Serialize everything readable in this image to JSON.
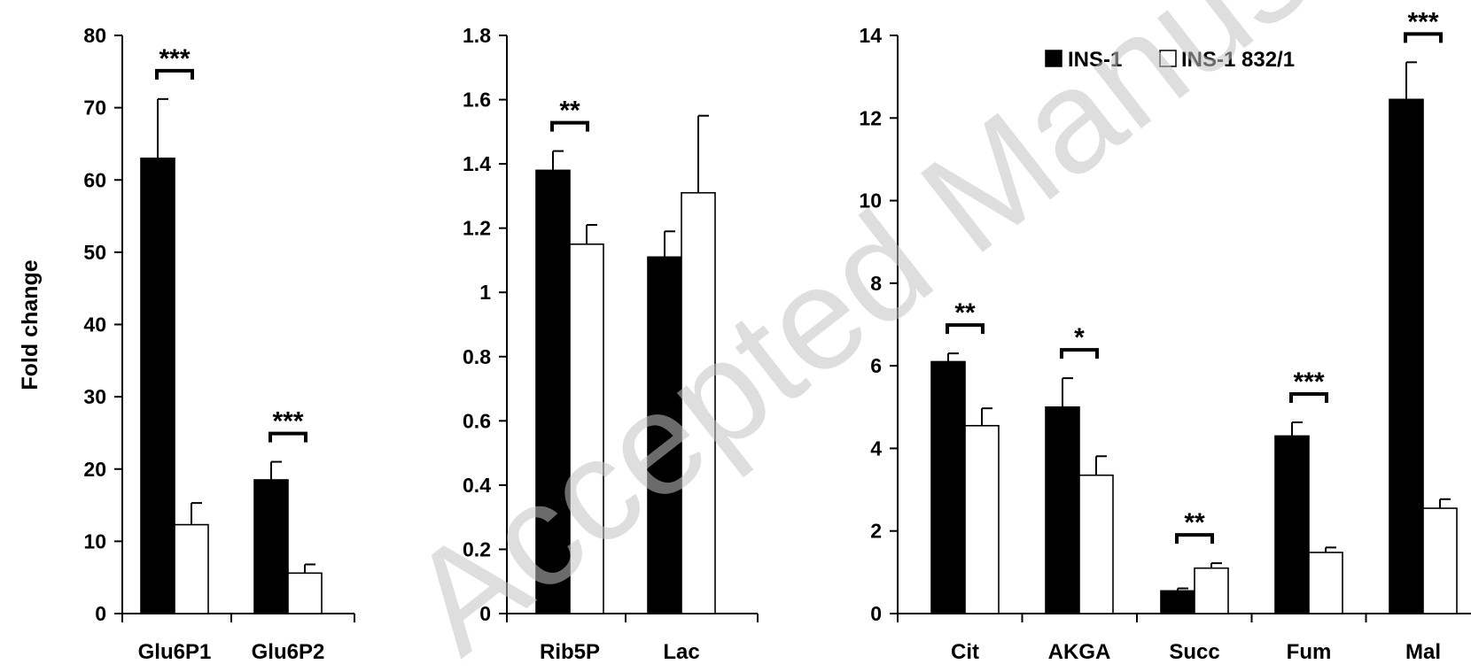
{
  "watermark": "Accepted Manuscript",
  "colors": {
    "ins1": "#000000",
    "ins1_832": "#ffffff",
    "axis": "#000000"
  },
  "legend": {
    "placement": "top-right",
    "items": [
      "INS-1",
      "INS-1 832/1"
    ]
  },
  "chart_data": [
    {
      "type": "bar",
      "ylabel": "Fold change",
      "ylim": [
        0,
        80
      ],
      "yticks": [
        0,
        10,
        20,
        30,
        40,
        50,
        60,
        70,
        80
      ],
      "ytick_labels": [
        "0",
        "10",
        "20",
        "30",
        "40",
        "50",
        "60",
        "70",
        "80"
      ],
      "categories": [
        "Glu6P1",
        "Glu6P2"
      ],
      "series": [
        {
          "name": "INS-1",
          "values": [
            63,
            18.5
          ],
          "errors": [
            8.2,
            2.5
          ]
        },
        {
          "name": "INS-1 832/1",
          "values": [
            12.3,
            5.6
          ],
          "errors": [
            3,
            1.2
          ]
        }
      ],
      "significance": [
        "***",
        "***"
      ]
    },
    {
      "type": "bar",
      "ylabel": "",
      "ylim": [
        0,
        1.8
      ],
      "yticks": [
        0,
        0.2,
        0.4,
        0.6,
        0.8,
        1.0,
        1.2,
        1.4,
        1.6,
        1.8
      ],
      "ytick_labels": [
        "0",
        "0.2",
        "0.4",
        "0.6",
        "0.8",
        "1",
        "1.2",
        "1.4",
        "1.6",
        "1.8"
      ],
      "categories": [
        "Rib5P",
        "Lac"
      ],
      "series": [
        {
          "name": "INS-1",
          "values": [
            1.38,
            1.11
          ],
          "errors": [
            0.06,
            0.08
          ]
        },
        {
          "name": "INS-1 832/1",
          "values": [
            1.15,
            1.31
          ],
          "errors": [
            0.06,
            0.24
          ]
        }
      ],
      "significance": [
        "**",
        ""
      ]
    },
    {
      "type": "bar",
      "ylabel": "",
      "ylim": [
        0,
        14
      ],
      "yticks": [
        0,
        2,
        4,
        6,
        8,
        10,
        12,
        14
      ],
      "ytick_labels": [
        "0",
        "2",
        "4",
        "6",
        "8",
        "10",
        "12",
        "14"
      ],
      "categories": [
        "Cit",
        "AKGA",
        "Succ",
        "Fum",
        "Mal"
      ],
      "series": [
        {
          "name": "INS-1",
          "values": [
            6.1,
            5.0,
            0.55,
            4.3,
            12.45
          ],
          "errors": [
            0.2,
            0.7,
            0.06,
            0.33,
            0.9
          ]
        },
        {
          "name": "INS-1 832/1",
          "values": [
            4.55,
            3.35,
            1.1,
            1.48,
            2.55
          ],
          "errors": [
            0.42,
            0.46,
            0.12,
            0.12,
            0.22
          ]
        }
      ],
      "significance": [
        "**",
        "*",
        "**",
        "***",
        "***"
      ]
    }
  ]
}
